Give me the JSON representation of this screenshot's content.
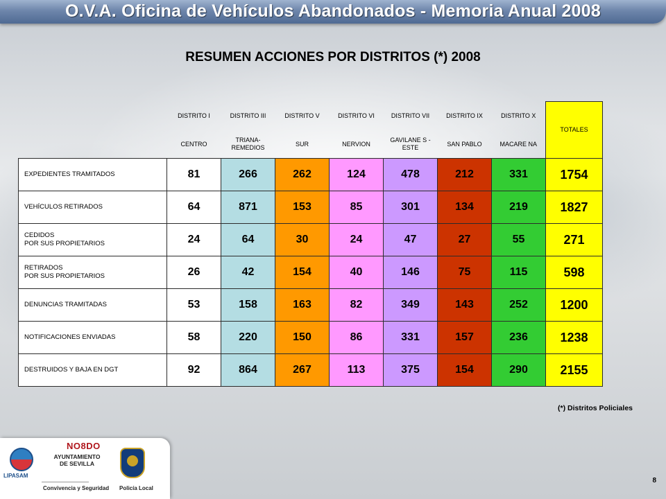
{
  "header": {
    "title": "O.V.A.  Oficina de Vehículos Abandonados - Memoria Anual 2008"
  },
  "heading": "RESUMEN ACCIONES POR DISTRITOS (*)  2008",
  "table": {
    "columns": [
      {
        "district": "DISTRITO I",
        "name": "CENTRO"
      },
      {
        "district": "DISTRITO III",
        "name": "TRIANA- REMEDIOS"
      },
      {
        "district": "DISTRITO V",
        "name": "SUR"
      },
      {
        "district": "DISTRITO VI",
        "name": "NERVION"
      },
      {
        "district": "DISTRITO VII",
        "name": "GAVILANE S - ESTE"
      },
      {
        "district": "DISTRITO IX",
        "name": "SAN PABLO"
      },
      {
        "district": "DISTRITO X",
        "name": "MACARE NA"
      }
    ],
    "totals_label": "TOTALES",
    "rows": [
      {
        "label": "EXPEDIENTES TRAMITADOS",
        "values": [
          "81",
          "266",
          "262",
          "124",
          "478",
          "212",
          "331"
        ],
        "total": "1754"
      },
      {
        "label": "VEHÍCULOS RETIRADOS",
        "values": [
          "64",
          "871",
          "153",
          "85",
          "301",
          "134",
          "219"
        ],
        "total": "1827"
      },
      {
        "label": "CEDIDOS POR SUS PROPIETARIOS",
        "values": [
          "24",
          "64",
          "30",
          "24",
          "47",
          "27",
          "55"
        ],
        "total": "271"
      },
      {
        "label": "RETIRADOS POR SUS PROPIETARIOS",
        "values": [
          "26",
          "42",
          "154",
          "40",
          "146",
          "75",
          "115"
        ],
        "total": "598"
      },
      {
        "label": "DENUNCIAS TRAMITADAS",
        "values": [
          "53",
          "158",
          "163",
          "82",
          "349",
          "143",
          "252"
        ],
        "total": "1200"
      },
      {
        "label": "NOTIFICACIONES ENVIADAS",
        "values": [
          "58",
          "220",
          "150",
          "86",
          "331",
          "157",
          "236"
        ],
        "total": "1238"
      },
      {
        "label": "DESTRUIDOS Y BAJA EN DGT",
        "values": [
          "92",
          "864",
          "267",
          "113",
          "375",
          "154",
          "290"
        ],
        "total": "2155"
      }
    ],
    "column_colors": [
      "#ffffff",
      "#b4dde3",
      "#ff9900",
      "#ff99ff",
      "#cc99ff",
      "#cc3300",
      "#33cc33"
    ],
    "total_color": "#ffff00"
  },
  "footnote": "(*) Distritos Policiales",
  "logos": {
    "lipasam": "LIPASAM",
    "nodo": "NO8DO",
    "ayuntamiento": "AYUNTAMIENTO DE SEVILLA",
    "convivencia": "Convivencia y Seguridad",
    "policia": "Policía Local"
  },
  "page_number": "8"
}
